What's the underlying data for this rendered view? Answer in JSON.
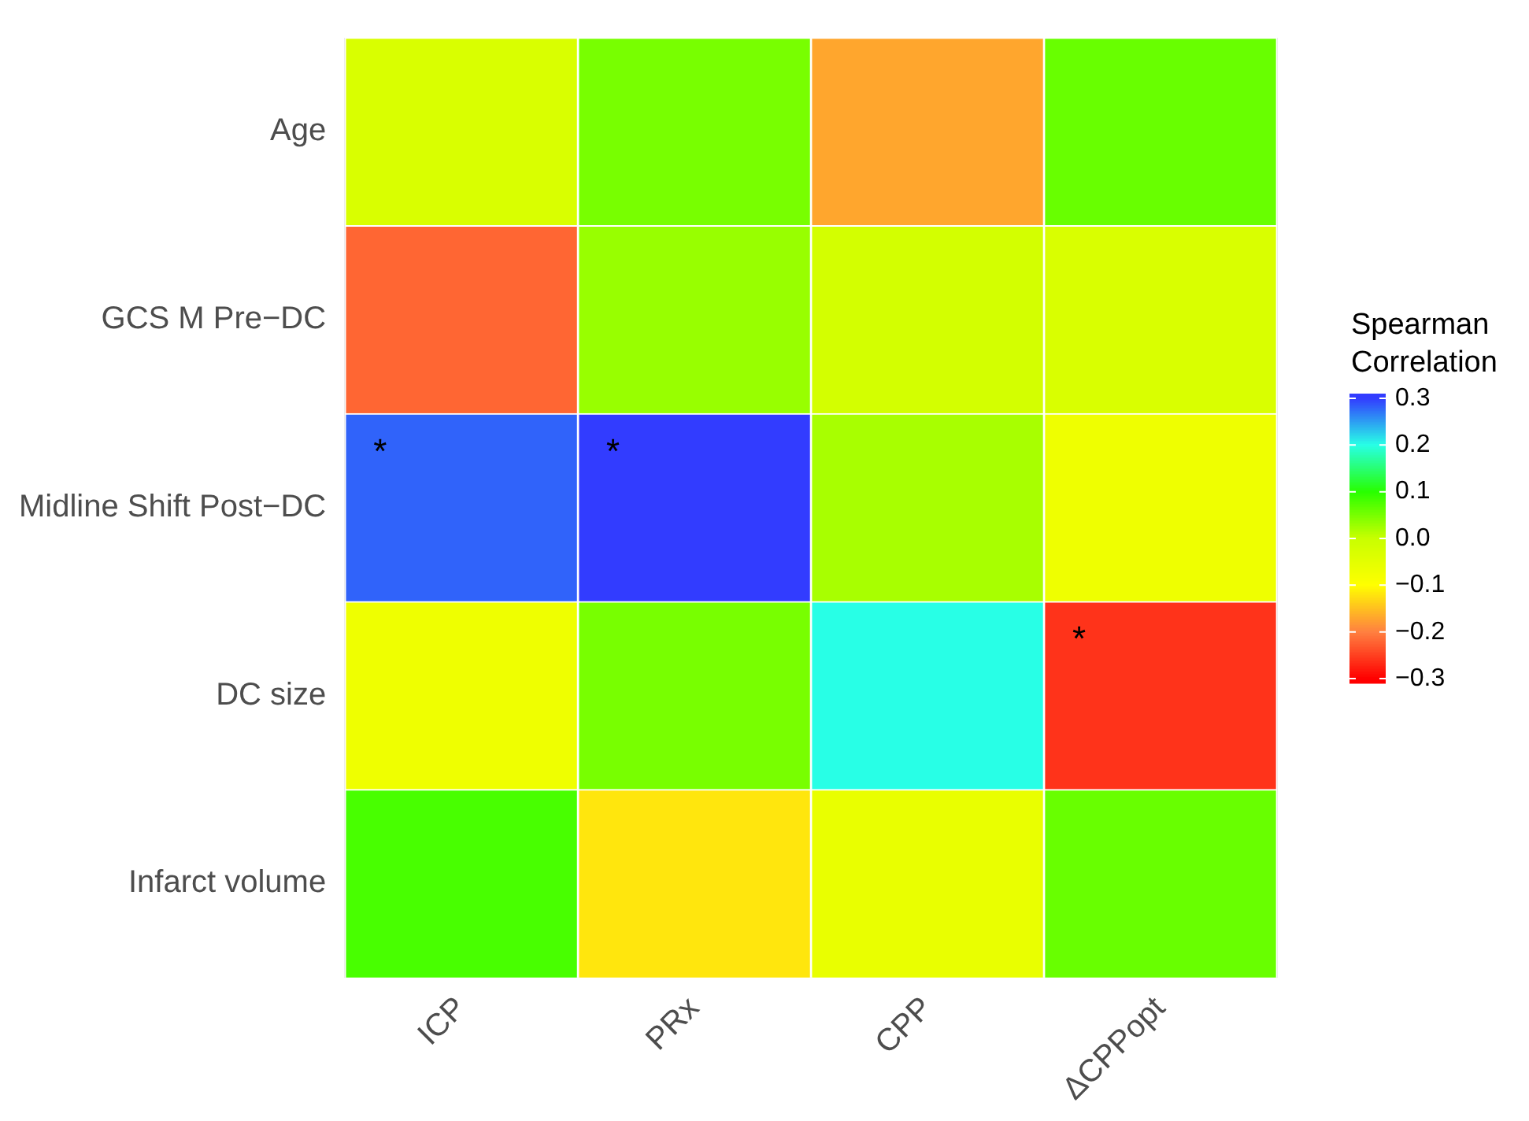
{
  "chart_data": {
    "type": "heatmap",
    "clabel": "Spearman Correlation",
    "categories": [
      "ICP",
      "PRx",
      "CPP",
      "ΔCPPopt"
    ],
    "y_categories": [
      "Age",
      "GCS M Pre−DC",
      "Midline Shift Post−DC",
      "DC size",
      "Infarct volume"
    ],
    "cells": [
      [
        -0.03,
        0.05,
        -0.17,
        0.06
      ],
      [
        -0.22,
        0.03,
        -0.02,
        -0.03
      ],
      [
        0.28,
        0.3,
        0.02,
        -0.07
      ],
      [
        -0.07,
        0.05,
        0.2,
        -0.26
      ],
      [
        0.08,
        -0.12,
        -0.06,
        0.06
      ]
    ],
    "cell_labels": [
      [
        null,
        null,
        null,
        null
      ],
      [
        null,
        null,
        null,
        null
      ],
      [
        "*",
        "*",
        null,
        null
      ],
      [
        null,
        null,
        null,
        "*"
      ],
      [
        null,
        null,
        null,
        null
      ]
    ],
    "clim": [
      -0.31,
      0.31
    ],
    "cticks": [
      0.3,
      0.2,
      0.1,
      {
        "value": 0,
        "label": "0.0"
      },
      {
        "value": -0.1,
        "label": "−0.1"
      },
      {
        "value": -0.2,
        "label": "−0.2"
      },
      {
        "value": -0.3,
        "label": "−0.3"
      }
    ],
    "grid": true
  }
}
